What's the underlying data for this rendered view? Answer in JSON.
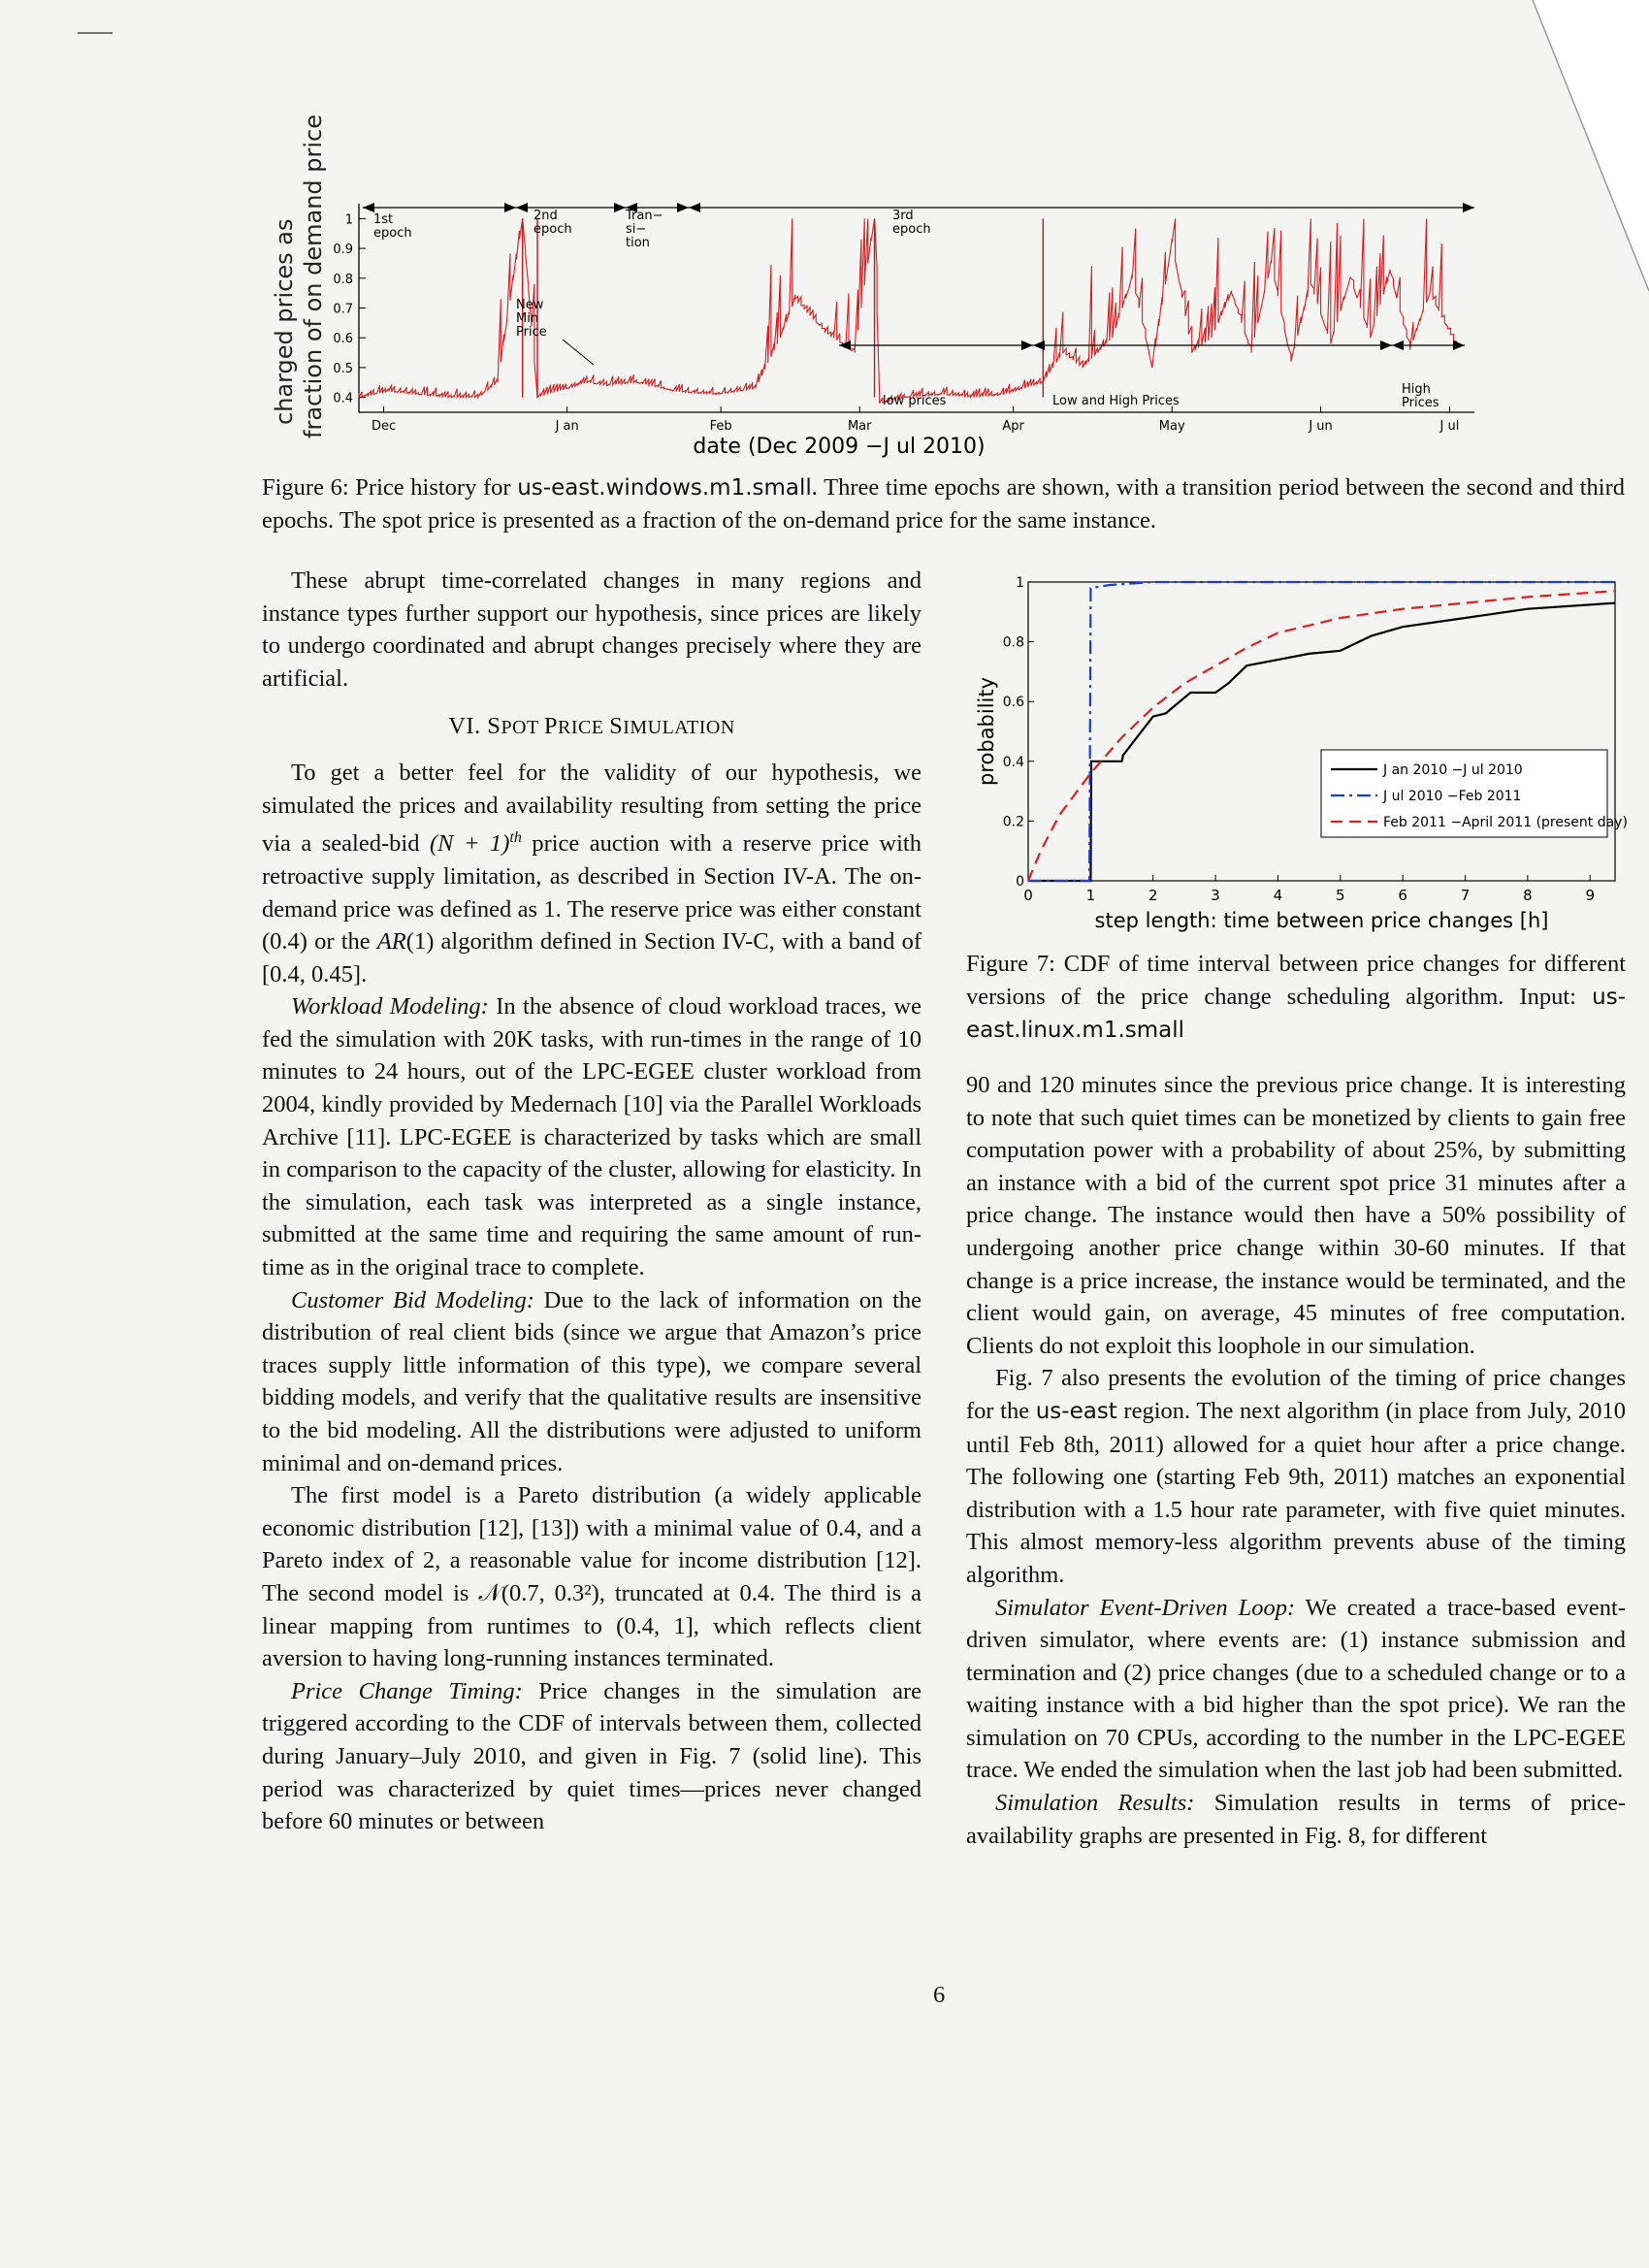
{
  "figure6": {
    "ylabel_line1": "charged prices as",
    "ylabel_line2": "fraction of on demand price",
    "xlabel": "date (Dec 2009 −J ul 2010)",
    "yticks": [
      "0.4",
      "0.5",
      "0.6",
      "0.7",
      "0.8",
      "0.9",
      "1"
    ],
    "xticks": [
      "Dec",
      "J an",
      "Feb",
      "Mar",
      "Apr",
      "May",
      "J un",
      "J ul"
    ],
    "annotations": {
      "first_epoch": [
        "1st",
        "epoch"
      ],
      "second_epoch": [
        "2nd",
        "epoch"
      ],
      "transition": [
        "Tran−",
        "si−",
        "tion"
      ],
      "third_epoch": [
        "3rd",
        "epoch"
      ],
      "new_min_price": [
        "New",
        "Min",
        "Price"
      ],
      "low_prices": "low prices",
      "low_and_high_prices": "Low and High Prices",
      "high_prices": [
        "High",
        "Prices"
      ]
    },
    "caption_prefix": "Figure 6: Price history for ",
    "caption_code": "us-east.windows.m1.small",
    "caption_rest": ". Three time epochs are shown, with a transition period between the second and third epochs. The spot price is presented as a fraction of the on-demand price for the same instance."
  },
  "chart_data": [
    {
      "type": "line",
      "title": "",
      "xlabel": "date (Dec 2009 −J ul 2010)",
      "ylabel": "charged prices as fraction of on demand price",
      "x_unit": "days since 2009-12-01",
      "ylim": [
        0.35,
        1.05
      ],
      "series": [
        {
          "name": "",
          "color": "#d42020",
          "points": [
            [
              0,
              0.4
            ],
            [
              6,
              0.42
            ],
            [
              12,
              0.41
            ],
            [
              18,
              0.4
            ],
            [
              24,
              0.4
            ],
            [
              28,
              0.45
            ],
            [
              33,
              1.0
            ],
            [
              36,
              0.4
            ],
            [
              40,
              0.42
            ],
            [
              46,
              0.45
            ],
            [
              50,
              0.44
            ],
            [
              56,
              0.45
            ],
            [
              64,
              0.42
            ],
            [
              72,
              0.41
            ],
            [
              80,
              0.43
            ],
            [
              85,
              0.6
            ],
            [
              88,
              0.73
            ],
            [
              94,
              0.62
            ],
            [
              100,
              0.55
            ],
            [
              104,
              1.0
            ],
            [
              105,
              0.38
            ],
            [
              110,
              0.4
            ],
            [
              118,
              0.41
            ],
            [
              124,
              0.4
            ],
            [
              130,
              0.41
            ],
            [
              138,
              0.45
            ],
            [
              142,
              0.55
            ],
            [
              146,
              0.5
            ],
            [
              152,
              0.6
            ],
            [
              156,
              0.8
            ],
            [
              160,
              0.5
            ],
            [
              164,
              0.92
            ],
            [
              168,
              0.55
            ],
            [
              172,
              0.6
            ],
            [
              176,
              0.75
            ],
            [
              180,
              0.55
            ],
            [
              184,
              0.85
            ],
            [
              188,
              0.52
            ],
            [
              192,
              0.78
            ],
            [
              196,
              0.58
            ],
            [
              200,
              0.8
            ],
            [
              204,
              0.6
            ],
            [
              208,
              0.82
            ],
            [
              212,
              0.56
            ],
            [
              216,
              0.75
            ],
            [
              222,
              0.55
            ]
          ]
        }
      ],
      "x_tick_labels": [
        "Dec",
        "J an",
        "Feb",
        "Mar",
        "Apr",
        "May",
        "J un",
        "J ul"
      ],
      "y_tick_labels": [
        "0.4",
        "0.5",
        "0.6",
        "0.7",
        "0.8",
        "0.9",
        "1"
      ]
    },
    {
      "type": "line",
      "title": "",
      "xlabel": "step length: time between price changes [h]",
      "ylabel": "probability",
      "xlim": [
        0,
        9.4
      ],
      "ylim": [
        0,
        1
      ],
      "legend_position": "center-right",
      "series": [
        {
          "name": "J an 2010 −J ul 2010",
          "style": "solid",
          "color": "#000000",
          "x": [
            0,
            0.5,
            1.0,
            1.01,
            1.5,
            1.52,
            2.0,
            2.2,
            2.6,
            3.0,
            3.2,
            3.5,
            4.0,
            4.5,
            5.0,
            5.5,
            6.0,
            7.0,
            8.0,
            9.4
          ],
          "y": [
            0,
            0,
            0,
            0.4,
            0.4,
            0.42,
            0.55,
            0.56,
            0.63,
            0.63,
            0.66,
            0.72,
            0.74,
            0.76,
            0.77,
            0.82,
            0.85,
            0.88,
            0.91,
            0.93
          ]
        },
        {
          "name": "J ul 2010 −Feb 2011",
          "style": "dashdot",
          "color": "#1a3fcf",
          "x": [
            0,
            0.98,
            1.0,
            1.3,
            2.0,
            4.0,
            6.0,
            8.0,
            9.4
          ],
          "y": [
            0,
            0,
            0.98,
            0.99,
            1.0,
            1.0,
            1.0,
            1.0,
            1.0
          ]
        },
        {
          "name": "Feb 2011 −April 2011 (present day)",
          "style": "dashed",
          "color": "#e02020",
          "x": [
            0,
            0.2,
            0.5,
            1.0,
            1.5,
            2.0,
            2.5,
            3.0,
            3.5,
            4.0,
            5.0,
            6.0,
            7.0,
            8.0,
            9.4
          ],
          "y": [
            0,
            0.1,
            0.22,
            0.36,
            0.48,
            0.58,
            0.66,
            0.72,
            0.78,
            0.83,
            0.88,
            0.91,
            0.93,
            0.95,
            0.97
          ]
        }
      ],
      "x_tick_labels": [
        "0",
        "1",
        "2",
        "3",
        "4",
        "5",
        "6",
        "7",
        "8",
        "9"
      ],
      "y_tick_labels": [
        "0",
        "0.2",
        "0.4",
        "0.6",
        "0.8",
        "1"
      ]
    }
  ],
  "left_column": {
    "para1": "These abrupt time-correlated changes in many regions and instance types further support our hypothesis, since prices are likely to undergo coordinated and abrupt changes precisely where they are artificial.",
    "section_number": "VI. ",
    "section_title_S": "S",
    "section_title_rest1": "POT ",
    "section_title_P": "P",
    "section_title_rest2": "RICE ",
    "section_title_S2": "S",
    "section_title_rest3": "IMULATION",
    "para2a": "To get a better feel for the validity of our hypothesis, we simulated the prices and availability resulting from setting the price via a sealed-bid ",
    "para2_math": "(N + 1)",
    "para2_sup": "th",
    "para2b": " price auction with a reserve price with retroactive supply limitation, as described in Section IV-A. The on-demand price was defined as 1. The reserve price was either constant (0.4) or the ",
    "para2_ar": "AR",
    "para2c": "(1) algorithm defined in Section IV-C, with a band of [0.4, 0.45].",
    "workload_heading": "Workload Modeling:",
    "workload_text": " In the absence of cloud workload traces, we fed the simulation with 20K tasks, with run-times in the range of 10 minutes to 24 hours, out of the LPC-EGEE cluster workload from 2004, kindly provided by Medernach [10] via the Parallel Workloads Archive [11]. LPC-EGEE is characterized by tasks which are small in comparison to the capacity of the cluster, allowing for elasticity. In the simulation, each task was interpreted as a single instance, submitted at the same time and requiring the same amount of run-time as in the original trace to complete.",
    "bid_heading": "Customer Bid Modeling:",
    "bid_text": " Due to the lack of information on the distribution of real client bids (since we argue that Amazon’s price traces supply little information of this type), we compare several bidding models, and verify that the qualitative results are insensitive to the bid modeling. All the distributions were adjusted to uniform minimal and on-demand prices.",
    "model_a": "The first model is a Pareto distribution (a widely applicable economic distribution [12], [13]) with a minimal value of 0.4,   and a Pareto index of 2, a reasonable value for income distribution [12]. The second model is ",
    "model_math": "𝒩(0.7, 0.3²)",
    "model_b": ", truncated at 0.4. The third is a linear mapping from runtimes to (0.4, 1], which reflects client aversion to having long-running instances terminated.",
    "timing_heading": "Price Change Timing:",
    "timing_text": " Price changes in the simulation are triggered according to the CDF of intervals between them, collected during January–July 2010, and given in Fig. 7 (solid line). This period was characterized by quiet times—prices never changed before 60 minutes or between"
  },
  "figure7": {
    "ylabel": "probability",
    "xlabel": "step length: time between price changes [h]",
    "yticks": [
      "0",
      "0.2",
      "0.4",
      "0.6",
      "0.8",
      "1"
    ],
    "xticks": [
      "0",
      "1",
      "2",
      "3",
      "4",
      "5",
      "6",
      "7",
      "8",
      "9"
    ],
    "legend": [
      "J an 2010 −J ul 2010",
      "J ul 2010 −Feb 2011",
      "Feb 2011 −April 2011 (present day)"
    ],
    "caption_a": "Figure 7: CDF of time interval between price changes for different versions of the price change scheduling algorithm. Input: ",
    "caption_code": "us-east.linux.m1.small"
  },
  "right_column": {
    "para1": "90 and 120 minutes since the previous price change. It is interesting to note that such quiet times can be monetized by clients to gain free computation power with a probability of about 25%, by submitting an instance with a bid of the current spot price 31 minutes after a price change. The instance would then have a 50% possibility of undergoing another price change within 30-60 minutes. If that change is a price increase, the instance would be terminated, and the client would gain, on average, 45 minutes of free computation. Clients do not exploit this loophole in our simulation.",
    "para2a": "Fig. 7 also presents the evolution of the timing of price changes for the ",
    "para2_code": "us-east",
    "para2b": " region. The next algorithm (in place from July, 2010 until Feb 8th, 2011) allowed for a quiet hour after a price change. The following one (starting Feb 9th, 2011) matches an exponential distribution with a 1.5 hour rate parameter, with five quiet minutes. This almost memory-less algorithm prevents abuse of the timing algorithm.",
    "sim_heading": "Simulator Event-Driven Loop:",
    "sim_text": " We created a trace-based event-driven simulator, where events are: (1) instance submission and termination and (2) price changes (due to a scheduled change or to a waiting instance with a bid higher than the spot price). We ran the simulation on 70 CPUs, according to the number in the LPC-EGEE trace. We ended the simulation when the last job had been submitted.",
    "results_heading": "Simulation Results:",
    "results_text": " Simulation results in terms of price-availability graphs are presented in Fig. 8, for different"
  },
  "page_number": "6"
}
